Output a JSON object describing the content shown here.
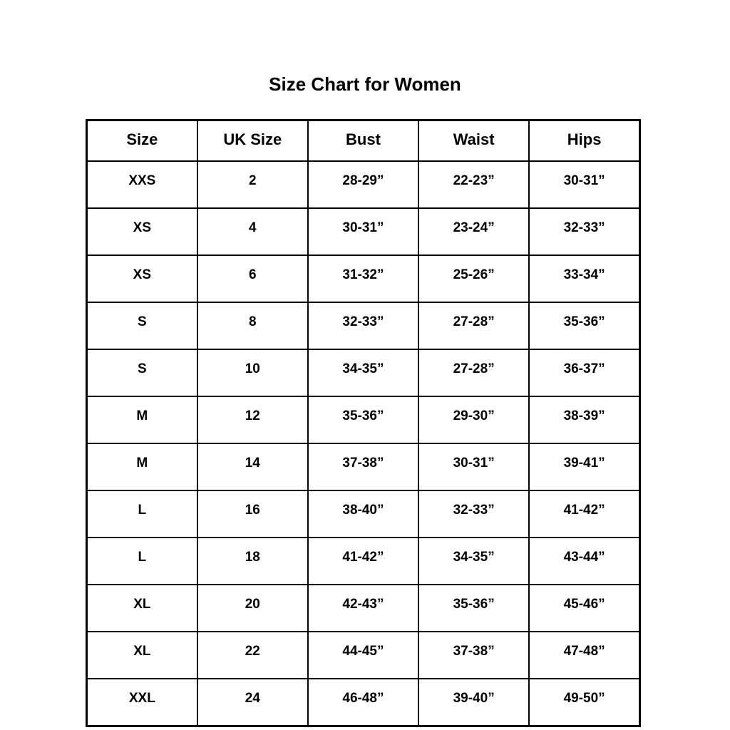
{
  "title": "Size Chart for Women",
  "colors": {
    "background": "#ffffff",
    "border": "#000000",
    "text": "#000000"
  },
  "chart_data": {
    "type": "table",
    "title": "Size Chart for Women",
    "columns": [
      "Size",
      "UK Size",
      "Bust",
      "Waist",
      "Hips"
    ],
    "rows": [
      [
        "XXS",
        "2",
        "28-29”",
        "22-23”",
        "30-31”"
      ],
      [
        "XS",
        "4",
        "30-31”",
        "23-24”",
        "32-33”"
      ],
      [
        "XS",
        "6",
        "31-32”",
        "25-26”",
        "33-34”"
      ],
      [
        "S",
        "8",
        "32-33”",
        "27-28”",
        "35-36”"
      ],
      [
        "S",
        "10",
        "34-35”",
        "27-28”",
        "36-37”"
      ],
      [
        "M",
        "12",
        "35-36”",
        "29-30”",
        "38-39”"
      ],
      [
        "M",
        "14",
        "37-38”",
        "30-31”",
        "39-41”"
      ],
      [
        "L",
        "16",
        "38-40”",
        "32-33”",
        "41-42”"
      ],
      [
        "L",
        "18",
        "41-42”",
        "34-35”",
        "43-44”"
      ],
      [
        "XL",
        "20",
        "42-43”",
        "35-36”",
        "45-46”"
      ],
      [
        "XL",
        "22",
        "44-45”",
        "37-38”",
        "47-48”"
      ],
      [
        "XXL",
        "24",
        "46-48”",
        "39-40”",
        "49-50”"
      ]
    ],
    "layout": {
      "grid": true,
      "column_count": 5,
      "row_count": 12,
      "header": true
    }
  }
}
